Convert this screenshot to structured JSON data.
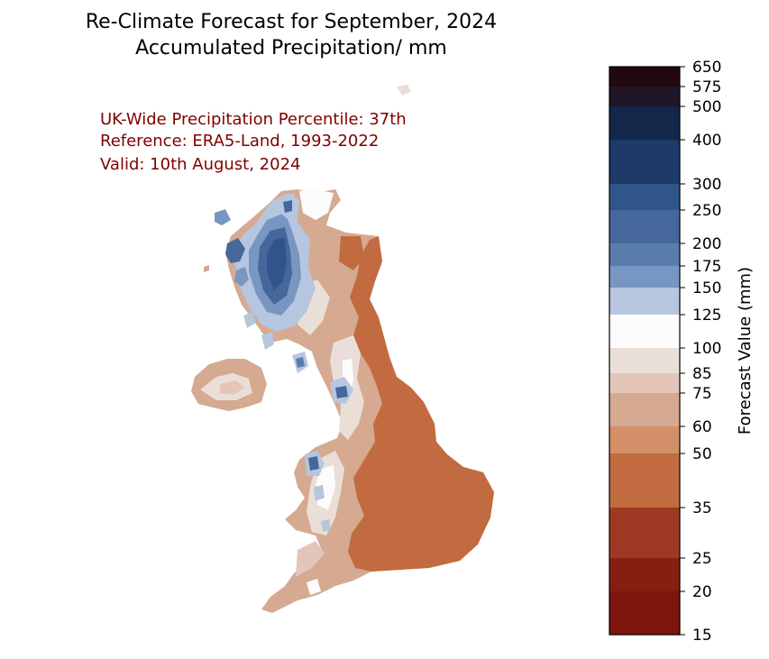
{
  "title": {
    "line1": "Re-Climate Forecast for September, 2024",
    "line2": "Accumulated Precipitation/ mm"
  },
  "annotations": {
    "percentile": "UK-Wide Precipitation Percentile: 37th",
    "reference": "Reference: ERA5-Land, 1993-2022",
    "valid": "Valid: 10th August, 2024"
  },
  "colorbar": {
    "label": "Forecast Value (mm)",
    "levels": [
      {
        "from": 15,
        "to": 20,
        "color": "#7e150d"
      },
      {
        "from": 20,
        "to": 25,
        "color": "#861e12"
      },
      {
        "from": 25,
        "to": 35,
        "color": "#9e3a24"
      },
      {
        "from": 35,
        "to": 50,
        "color": "#c26b40"
      },
      {
        "from": 50,
        "to": 60,
        "color": "#d38f68"
      },
      {
        "from": 60,
        "to": 75,
        "color": "#d6a991"
      },
      {
        "from": 75,
        "to": 85,
        "color": "#e3c5ba"
      },
      {
        "from": 85,
        "to": 100,
        "color": "#eadfd8"
      },
      {
        "from": 100,
        "to": 125,
        "color": "#fcfcfc"
      },
      {
        "from": 125,
        "to": 150,
        "color": "#b6c6de"
      },
      {
        "from": 150,
        "to": 175,
        "color": "#7896c2"
      },
      {
        "from": 175,
        "to": 200,
        "color": "#587dad"
      },
      {
        "from": 200,
        "to": 250,
        "color": "#46679b"
      },
      {
        "from": 250,
        "to": 300,
        "color": "#30558a"
      },
      {
        "from": 300,
        "to": 400,
        "color": "#1d3a68"
      },
      {
        "from": 400,
        "to": 500,
        "color": "#13274b"
      },
      {
        "from": 500,
        "to": 575,
        "color": "#1f1526"
      },
      {
        "from": 575,
        "to": 650,
        "color": "#220910"
      }
    ],
    "ticks": [
      "15",
      "20",
      "25",
      "35",
      "50",
      "60",
      "75",
      "85",
      "100",
      "125",
      "150",
      "175",
      "200",
      "250",
      "300",
      "400",
      "500",
      "575",
      "650"
    ]
  },
  "map_regions": {
    "england_east": "35-50",
    "scotland_west_highlands": "300-400",
    "wales_snowdonia": "200-300",
    "lake_district": "250-300",
    "northern_ireland": "60-85"
  }
}
